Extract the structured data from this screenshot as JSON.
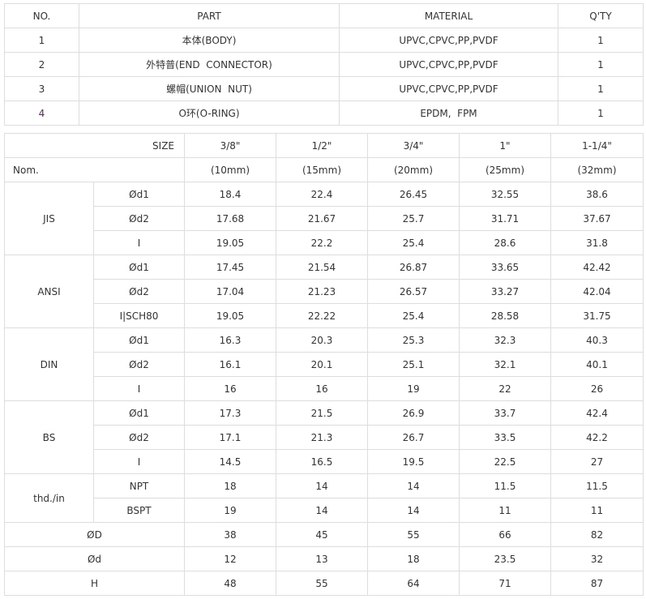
{
  "parts": {
    "headers": [
      "NO.",
      "PART",
      "MATERIAL",
      "Q'TY"
    ],
    "rows": [
      [
        "1",
        "本体(BODY)",
        "UPVC,CPVC,PP,PVDF",
        "1"
      ],
      [
        "2",
        "外特普(END  CONNECTOR)",
        "UPVC,CPVC,PP,PVDF",
        "1"
      ],
      [
        "3",
        "螺帽(UNION  NUT)",
        "UPVC,CPVC,PP,PVDF",
        "1"
      ],
      [
        "4",
        "O环(O-RING)",
        "EPDM,  FPM",
        "1"
      ]
    ]
  },
  "dims": {
    "size_label": "SIZE",
    "nom_label": "Nom.",
    "sizes": [
      "3/8\"",
      "1/2\"",
      "3/4\"",
      "1\"",
      "1-1/4\""
    ],
    "noms": [
      "(10mm)",
      "(15mm)",
      "(20mm)",
      "(25mm)",
      "(32mm)"
    ],
    "groups": [
      {
        "name": "JIS",
        "rows": [
          [
            "Ød1",
            "18.4",
            "22.4",
            "26.45",
            "32.55",
            "38.6"
          ],
          [
            "Ød2",
            "17.68",
            "21.67",
            "25.7",
            "31.71",
            "37.67"
          ],
          [
            "I",
            "19.05",
            "22.2",
            "25.4",
            "28.6",
            "31.8"
          ]
        ]
      },
      {
        "name": "ANSI",
        "rows": [
          [
            "Ød1",
            "17.45",
            "21.54",
            "26.87",
            "33.65",
            "42.42"
          ],
          [
            "Ød2",
            "17.04",
            "21.23",
            "26.57",
            "33.27",
            "42.04"
          ],
          [
            "I|SCH80",
            "19.05",
            "22.22",
            "25.4",
            "28.58",
            "31.75"
          ]
        ]
      },
      {
        "name": "DIN",
        "rows": [
          [
            "Ød1",
            "16.3",
            "20.3",
            "25.3",
            "32.3",
            "40.3"
          ],
          [
            "Ød2",
            "16.1",
            "20.1",
            "25.1",
            "32.1",
            "40.1"
          ],
          [
            "I",
            "16",
            "16",
            "19",
            "22",
            "26"
          ]
        ]
      },
      {
        "name": "BS",
        "rows": [
          [
            "Ød1",
            "17.3",
            "21.5",
            "26.9",
            "33.7",
            "42.4"
          ],
          [
            "Ød2",
            "17.1",
            "21.3",
            "26.7",
            "33.5",
            "42.2"
          ],
          [
            "I",
            "14.5",
            "16.5",
            "19.5",
            "22.5",
            "27"
          ]
        ]
      },
      {
        "name": "thd./in",
        "rows": [
          [
            "NPT",
            "18",
            "14",
            "14",
            "11.5",
            "11.5"
          ],
          [
            "BSPT",
            "19",
            "14",
            "14",
            "11",
            "11"
          ]
        ]
      }
    ],
    "bottom": [
      [
        "ØD",
        "38",
        "45",
        "55",
        "66",
        "82"
      ],
      [
        "Ød",
        "12",
        "13",
        "18",
        "23.5",
        "32"
      ],
      [
        "H",
        "48",
        "55",
        "64",
        "71",
        "87"
      ]
    ]
  }
}
